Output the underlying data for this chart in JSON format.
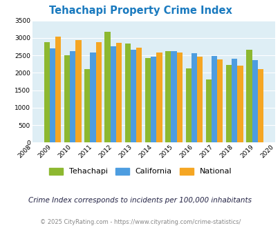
{
  "title": "Tehachapi Property Crime Index",
  "years": [
    2009,
    2010,
    2011,
    2012,
    2013,
    2014,
    2015,
    2016,
    2017,
    2018,
    2019
  ],
  "tehachapi": [
    2870,
    2500,
    2100,
    3180,
    2830,
    2420,
    2620,
    2130,
    1810,
    2220,
    2670
  ],
  "california": [
    2710,
    2620,
    2580,
    2760,
    2660,
    2460,
    2620,
    2560,
    2490,
    2410,
    2360
  ],
  "national": [
    3040,
    2940,
    2880,
    2850,
    2730,
    2590,
    2580,
    2470,
    2390,
    2200,
    2110
  ],
  "color_tehachapi": "#8db830",
  "color_california": "#4d9de0",
  "color_national": "#f5a623",
  "ylim": [
    0,
    3500
  ],
  "yticks": [
    0,
    500,
    1000,
    1500,
    2000,
    2500,
    3000,
    3500
  ],
  "xticks_all": [
    2008,
    2009,
    2010,
    2011,
    2012,
    2013,
    2014,
    2015,
    2016,
    2017,
    2018,
    2019,
    2020
  ],
  "bg_color": "#deeef5",
  "title_color": "#1a7abf",
  "subtitle": "Crime Index corresponds to incidents per 100,000 inhabitants",
  "footer": "© 2025 CityRating.com - https://www.cityrating.com/crime-statistics/",
  "legend_labels": [
    "Tehachapi",
    "California",
    "National"
  ],
  "subtitle_color": "#222244",
  "footer_color": "#888888",
  "footer_link_color": "#4477cc"
}
